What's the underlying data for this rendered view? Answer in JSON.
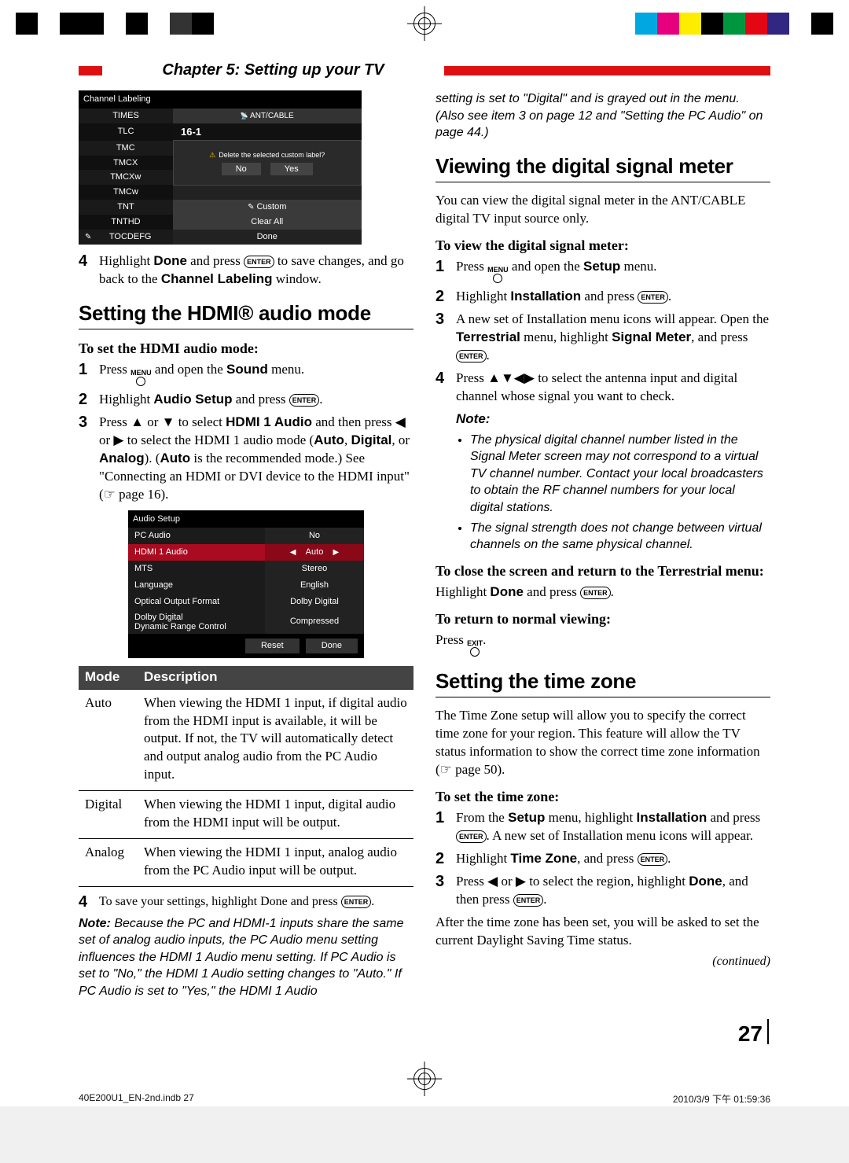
{
  "crop_colors_left": [
    "#000000",
    "#ffffff",
    "#000000",
    "#000000",
    "#ffffff",
    "#000000",
    "#ffffff",
    "#333333",
    "#000000"
  ],
  "crop_colors_right": [
    "#00a7e1",
    "#e6007e",
    "#ffed00",
    "#000000",
    "#009640",
    "#e30613",
    "#312783",
    "#ffffff",
    "#000000"
  ],
  "chapter": "Chapter 5: Setting up your TV",
  "scr1": {
    "title": "Channel Labeling",
    "col_right_header": "ANT/CABLE",
    "channel_display": "16-1",
    "rows_left": [
      "TIMES",
      "TLC",
      "TMC",
      "TMCX",
      "TMCXw",
      "TMCw",
      "TNT",
      "TNTHD",
      "TOCDEFG"
    ],
    "dialog_text": "Delete the selected custom label?",
    "dlg_no": "No",
    "dlg_yes": "Yes",
    "row_custom": "Custom",
    "row_clear": "Clear All",
    "row_done": "Done"
  },
  "step4a_pre": "Highlight ",
  "step4a_done": "Done",
  "step4a_mid": " and press ",
  "step4a_post": " to save changes, and go back to the ",
  "step4a_win": "Channel Labeling",
  "step4a_end": " window.",
  "h_hdmi": "Setting the HDMI® audio mode",
  "sub_hdmi": "To set the HDMI audio mode:",
  "hdmi_steps": [
    {
      "pre": "Press ",
      "menu": "MENU",
      "mid": " and open the ",
      "bold": "Sound",
      "post": " menu."
    },
    {
      "pre": "Highlight ",
      "bold": "Audio Setup",
      "mid": " and press ",
      "enter": true,
      "post": "."
    },
    {
      "text_a": "Press ▲ or ▼ to select ",
      "bold_a": "HDMI 1 Audio",
      "text_b": " and then press ◀ or ▶ to select the HDMI 1 audio mode (",
      "bold_b": "Auto",
      "text_c": ", ",
      "bold_c": "Digital",
      "text_d": ", or ",
      "bold_d": "Analog",
      "text_e": "). (",
      "bold_e": "Auto",
      "text_f": " is the recommended mode.) See \"Connecting an HDMI or DVI device to the HDMI input\" (☞ page 16)."
    }
  ],
  "scr2": {
    "title": "Audio Setup",
    "rows": [
      {
        "label": "PC Audio",
        "value": "No"
      },
      {
        "label": "HDMI 1 Audio",
        "value": "Auto",
        "selected": true,
        "arrows": true
      },
      {
        "label": "MTS",
        "value": "Stereo"
      },
      {
        "label": "Language",
        "value": "English"
      },
      {
        "label": "Optical Output Format",
        "value": "Dolby Digital"
      },
      {
        "label": "Dolby Digital Dynamic Range Control",
        "value": "Compressed",
        "twoLine": true
      }
    ],
    "reset": "Reset",
    "done": "Done"
  },
  "mode_table": {
    "head_mode": "Mode",
    "head_desc": "Description",
    "rows": [
      {
        "mode": "Auto",
        "desc": "When viewing the HDMI 1 input, if digital audio from the HDMI input is available, it will be output. If not, the TV will automatically detect and output analog audio from the PC Audio input."
      },
      {
        "mode": "Digital",
        "desc": "When viewing the HDMI 1 input, digital audio from the HDMI input will be output."
      },
      {
        "mode": "Analog",
        "desc": "When viewing the HDMI 1 input, analog audio from the PC Audio input will be output."
      }
    ]
  },
  "step4b_pre": "To save your settings, highlight Done and press ",
  "step4b_post": ".",
  "note1_head": "Note:",
  "note1_body": " Because the PC and HDMI-1 inputs share the same set of analog audio inputs, the PC Audio menu setting influences the HDMI 1 Audio menu setting. If PC Audio is set to \"No,\" the HDMI 1 Audio setting changes to \"Auto.\" If PC Audio is set to \"Yes,\" the HDMI 1 Audio",
  "col2_top": "setting is set to \"Digital\" and is grayed out in the menu. (Also see item 3 on page 12 and \"Setting the PC Audio\" on page 44.)",
  "h_signal": "Viewing the digital signal meter",
  "signal_intro": "You can view the digital signal meter in the ANT/CABLE digital TV input source only.",
  "sub_signal": "To view the digital signal meter:",
  "signal_steps": [
    {
      "pre": "Press ",
      "menu": "MENU",
      "mid": " and open the ",
      "bold": "Setup",
      "post": " menu."
    },
    {
      "pre": "Highlight ",
      "bold": "Installation",
      "mid": " and press ",
      "enter": true,
      "post": "."
    },
    {
      "text": "A new set of Installation menu icons will appear. Open the ",
      "bold_a": "Terrestrial",
      "text_b": " menu, highlight ",
      "bold_b": "Signal Meter",
      "text_c": ", and press ",
      "enter": true,
      "post": "."
    },
    {
      "text": "Press ▲▼◀▶ to select the antenna input and digital channel whose signal you want to check."
    }
  ],
  "note2_head": "Note:",
  "note2_items": [
    "The physical digital channel number listed in the Signal Meter screen may not correspond to a virtual TV channel number. Contact your local broadcasters to obtain the RF channel numbers for your local digital stations.",
    "The signal strength does not change between virtual channels on the same physical channel."
  ],
  "sub_close": "To close the screen and return to the Terrestrial menu:",
  "close_body_pre": "Highlight ",
  "close_bold": "Done",
  "close_mid": " and press ",
  "close_post": ".",
  "sub_return": "To return to normal viewing:",
  "return_pre": "Press ",
  "return_menu": "EXIT",
  "return_post": ".",
  "h_tz": "Setting the time zone",
  "tz_intro": "The Time Zone setup will allow you to specify the correct time zone for your region. This feature will allow the TV status information to show the correct time zone information (☞ page 50).",
  "sub_tz": "To set the time zone:",
  "tz_steps": [
    {
      "text_a": "From the ",
      "bold_a": "Setup",
      "text_b": " menu, highlight ",
      "bold_b": "Installation",
      "text_c": " and press ",
      "enter": true,
      "text_d": ". A new set of Installation menu icons will appear."
    },
    {
      "pre": "Highlight ",
      "bold": "Time Zone",
      "mid": ", and press ",
      "enter": true,
      "post": "."
    },
    {
      "text_a": "Press ◀ or ▶ to select the region, highlight ",
      "bold_a": "Done",
      "text_b": ", and then press ",
      "enter": true,
      "post": "."
    }
  ],
  "tz_after": "After the time zone has been set, you will be asked to set the current Daylight Saving Time status.",
  "continued": "(continued)",
  "page_number": "27",
  "footer_left": "40E200U1_EN-2nd.indb   27",
  "footer_right": "2010/3/9   下午 01:59:36"
}
